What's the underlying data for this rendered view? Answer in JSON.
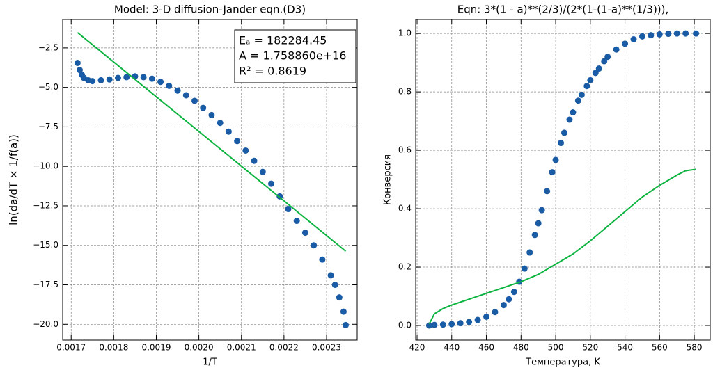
{
  "chart_data": [
    {
      "type": "scatter",
      "title": "Model: 3-D diffusion-Jander eqn.(D3)",
      "x_label": "1/T",
      "y_label": "ln(da/dT × 1/f(a))",
      "annotations": [
        "Eₐ = 182284.45",
        "A = 1.758860e+16",
        "R² = 0.8619"
      ],
      "grid": true,
      "xlim": [
        0.00168,
        0.002372
      ],
      "ylim": [
        -21.0,
        -0.7
      ],
      "xticks": [
        0.0017,
        0.0018,
        0.0019,
        {
          "value": 0.002,
          "label": "0.0020"
        },
        0.0021,
        0.0022,
        0.0023
      ],
      "yticks": [
        {
          "value": -2.5,
          "label": "−2.5"
        },
        {
          "value": -5,
          "label": "−5.0"
        },
        {
          "value": -7.5,
          "label": "−7.5"
        },
        {
          "value": -10,
          "label": "−10.0"
        },
        {
          "value": -12.5,
          "label": "−12.5"
        },
        {
          "value": -15,
          "label": "−15.0"
        },
        {
          "value": -17.5,
          "label": "−17.5"
        },
        {
          "value": -20,
          "label": "−20.0"
        }
      ],
      "series": [
        {
          "mode": "markers",
          "color": "#1a5ba6",
          "x": [
            0.001715,
            0.00172,
            0.001725,
            0.00173,
            0.00174,
            0.00175,
            0.00177,
            0.00179,
            0.00181,
            0.00183,
            0.00185,
            0.00187,
            0.00189,
            0.00191,
            0.00193,
            0.00195,
            0.00197,
            0.00199,
            0.00201,
            0.00203,
            0.00205,
            0.00207,
            0.00209,
            0.00211,
            0.00213,
            0.00215,
            0.00217,
            0.00219,
            0.00221,
            0.00223,
            0.00225,
            0.00227,
            0.00229,
            0.00231,
            0.00232,
            0.00233,
            0.00234,
            0.002345
          ],
          "values": [
            -3.45,
            -3.9,
            -4.2,
            -4.4,
            -4.55,
            -4.6,
            -4.55,
            -4.5,
            -4.4,
            -4.35,
            -4.3,
            -4.35,
            -4.45,
            -4.65,
            -4.9,
            -5.2,
            -5.5,
            -5.85,
            -6.3,
            -6.75,
            -7.25,
            -7.8,
            -8.4,
            -9.0,
            -9.65,
            -10.35,
            -11.1,
            -11.9,
            -12.7,
            -13.45,
            -14.2,
            -15.0,
            -15.9,
            -16.9,
            -17.5,
            -18.3,
            -19.2,
            -20.05
          ]
        },
        {
          "mode": "line",
          "color": "#0bb33f",
          "x": [
            0.001715,
            0.002345
          ],
          "values": [
            -1.53,
            -15.37
          ]
        }
      ]
    },
    {
      "type": "scatter",
      "title": "Eqn: 3*(1 - a)**(2/3)/(2*(1-(1-a)**(1/3))),",
      "x_label": "Температура, K",
      "y_label": "Конверсия",
      "grid": true,
      "xlim": [
        419.2,
        589.2
      ],
      "ylim": [
        -0.05,
        1.048
      ],
      "xticks": [
        420,
        440,
        460,
        480,
        500,
        520,
        540,
        560,
        580
      ],
      "yticks": [
        {
          "value": 0,
          "label": "0.0"
        },
        0.2,
        0.4,
        0.6,
        0.8,
        {
          "value": 1,
          "label": "1.0"
        }
      ],
      "series": [
        {
          "mode": "markers",
          "color": "#1a5ba6",
          "x": [
            427,
            430,
            435,
            440,
            445,
            450,
            455,
            460,
            465,
            470,
            473,
            476,
            479,
            482,
            485,
            488,
            490,
            492,
            495,
            498,
            500,
            503,
            505,
            508,
            510,
            513,
            515,
            518,
            520,
            523,
            525,
            528,
            530,
            535,
            540,
            545,
            550,
            555,
            560,
            565,
            570,
            575,
            581
          ],
          "values": [
            0.0,
            0.002,
            0.003,
            0.005,
            0.008,
            0.012,
            0.019,
            0.03,
            0.046,
            0.07,
            0.09,
            0.115,
            0.15,
            0.195,
            0.25,
            0.31,
            0.35,
            0.395,
            0.46,
            0.525,
            0.567,
            0.625,
            0.66,
            0.705,
            0.73,
            0.77,
            0.79,
            0.82,
            0.84,
            0.865,
            0.88,
            0.905,
            0.92,
            0.945,
            0.965,
            0.98,
            0.99,
            0.994,
            0.997,
            0.999,
            1.0,
            1.0,
            1.0
          ]
        },
        {
          "mode": "line",
          "color": "#0bb33f",
          "x": [
            427,
            430,
            435,
            440,
            450,
            460,
            470,
            480,
            490,
            500,
            510,
            520,
            530,
            540,
            550,
            560,
            570,
            575,
            581
          ],
          "values": [
            0.005,
            0.04,
            0.058,
            0.07,
            0.09,
            0.11,
            0.13,
            0.15,
            0.175,
            0.21,
            0.245,
            0.29,
            0.34,
            0.39,
            0.44,
            0.48,
            0.515,
            0.53,
            0.535
          ]
        }
      ]
    }
  ]
}
